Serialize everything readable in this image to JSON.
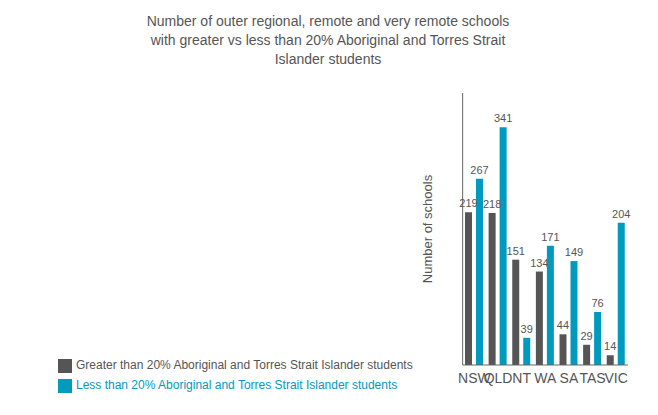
{
  "chart_data": {
    "type": "bar",
    "title": "Number of outer regional, remote and very remote schools\nwith greater vs less than 20% Aboriginal and Torres Strait\nIslander students",
    "categories": [
      "NSW",
      "QLD",
      "NT",
      "WA",
      "SA",
      "TAS",
      "VIC"
    ],
    "series": [
      {
        "name": "Greater than 20% Aboriginal and Torres Strait Islander students",
        "color": "#555555",
        "values": [
          219,
          218,
          151,
          134,
          44,
          29,
          14
        ]
      },
      {
        "name": "Less than 20% Aboriginal and Torres Strait Islander students",
        "color": "#009abf",
        "values": [
          267,
          341,
          39,
          171,
          149,
          76,
          204
        ]
      }
    ],
    "ylabel": "Number of schools",
    "ylim": [
      0,
      390
    ],
    "data_labels": true,
    "tick_labels": "x",
    "grid": false,
    "legend": "bottom"
  }
}
